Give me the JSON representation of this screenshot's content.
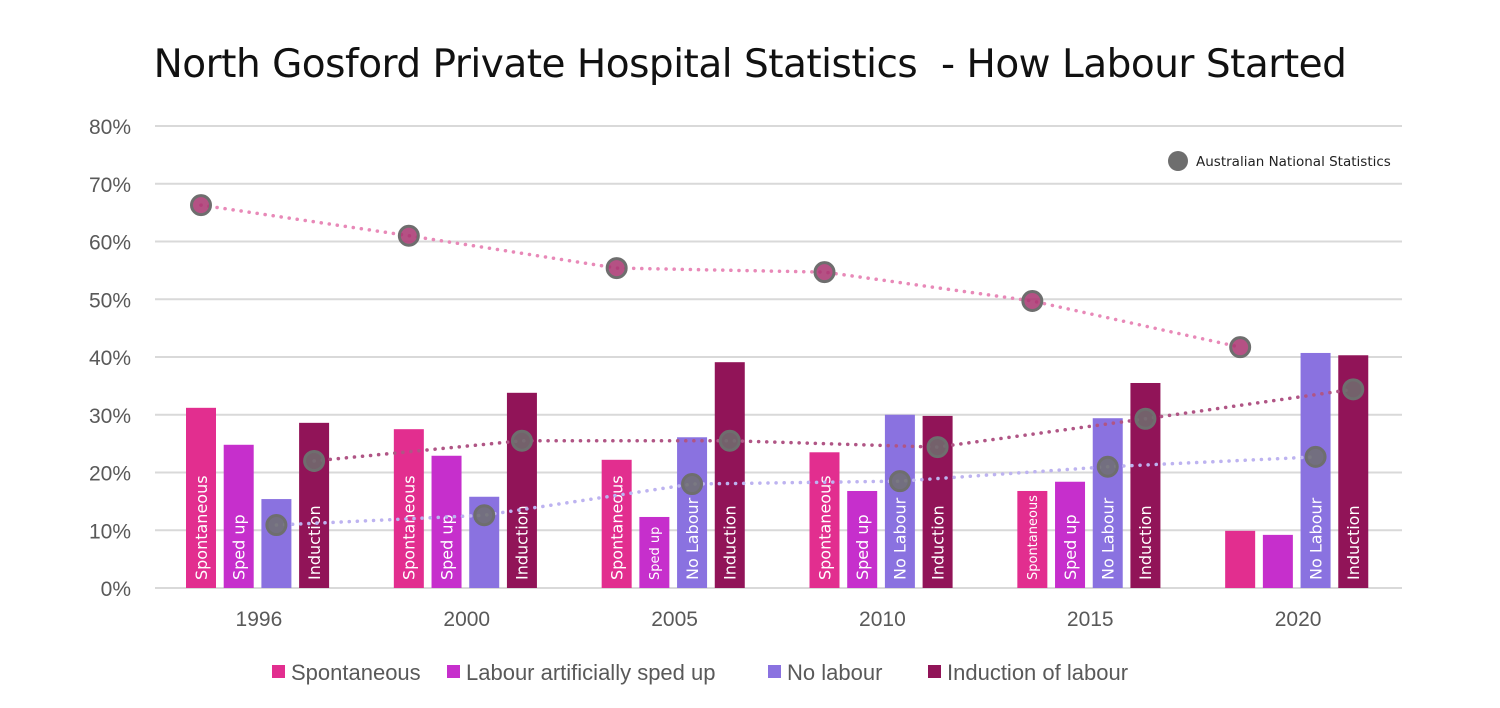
{
  "title": "North Gosford Private Hospital Statistics  - How Labour Started",
  "chart_data": {
    "type": "bar",
    "title": "North Gosford Private Hospital Statistics  - How Labour Started",
    "categories": [
      "1996",
      "2000",
      "2005",
      "2010",
      "2015",
      "2020"
    ],
    "ylim": [
      0,
      80
    ],
    "yticks": [
      "0%",
      "10%",
      "20%",
      "30%",
      "40%",
      "50%",
      "60%",
      "70%",
      "80%"
    ],
    "grid": true,
    "legend_position": "bottom",
    "series": [
      {
        "name": "Spontaneous",
        "color": "#e22e8f",
        "values": [
          31.2,
          27.5,
          22.2,
          23.5,
          16.8,
          9.9
        ],
        "bar_labels": [
          "Spontaneous",
          "Spontaneous",
          "Spontaneous",
          "Spontaneous",
          "Spontaneous",
          ""
        ]
      },
      {
        "name": "Labour artificially sped up",
        "color": "#c62fcc",
        "values": [
          24.8,
          22.9,
          12.3,
          16.8,
          18.4,
          9.2
        ],
        "bar_labels": [
          "Sped up",
          "Sped up",
          "Sped up",
          "Sped up",
          "Sped up",
          ""
        ]
      },
      {
        "name": "No labour",
        "color": "#8a72e0",
        "values": [
          15.4,
          15.8,
          26.1,
          30.0,
          29.4,
          40.7
        ],
        "bar_labels": [
          "",
          "",
          "No Labour",
          "No Labour",
          "No Labour",
          "No Labour"
        ]
      },
      {
        "name": "Induction of labour",
        "color": "#911458",
        "values": [
          28.6,
          33.8,
          39.1,
          29.8,
          35.5,
          40.3
        ],
        "bar_labels": [
          "Induction",
          "Induction",
          "Induction",
          "Induction",
          "Induction",
          "Induction"
        ]
      }
    ],
    "national_statistics": {
      "legend_label": "Australian National Statistics",
      "marker_color": "#6e6e6e",
      "series": [
        {
          "of": "Spontaneous",
          "line_color": "#e889b8",
          "values": [
            66.3,
            61.0,
            55.4,
            54.7,
            49.7,
            41.7
          ]
        },
        {
          "of": "No labour",
          "line_color": "#bdb3f0",
          "values": [
            10.9,
            12.6,
            18.0,
            18.5,
            21.0,
            22.7
          ]
        },
        {
          "of": "Induction of labour",
          "line_color": "#b05585",
          "values": [
            22.0,
            25.5,
            25.5,
            24.4,
            29.3,
            34.4
          ]
        }
      ]
    }
  }
}
